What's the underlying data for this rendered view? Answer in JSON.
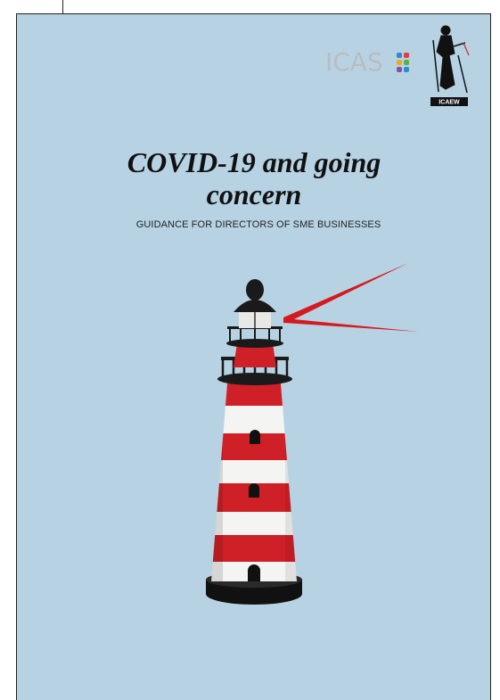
{
  "header": {
    "logo_left": "ICAS",
    "logo_right": "ICAEW"
  },
  "cover": {
    "title": "COVID-19 and going concern",
    "subtitle": "GUIDANCE FOR DIRECTORS OF SME BUSINESSES"
  }
}
